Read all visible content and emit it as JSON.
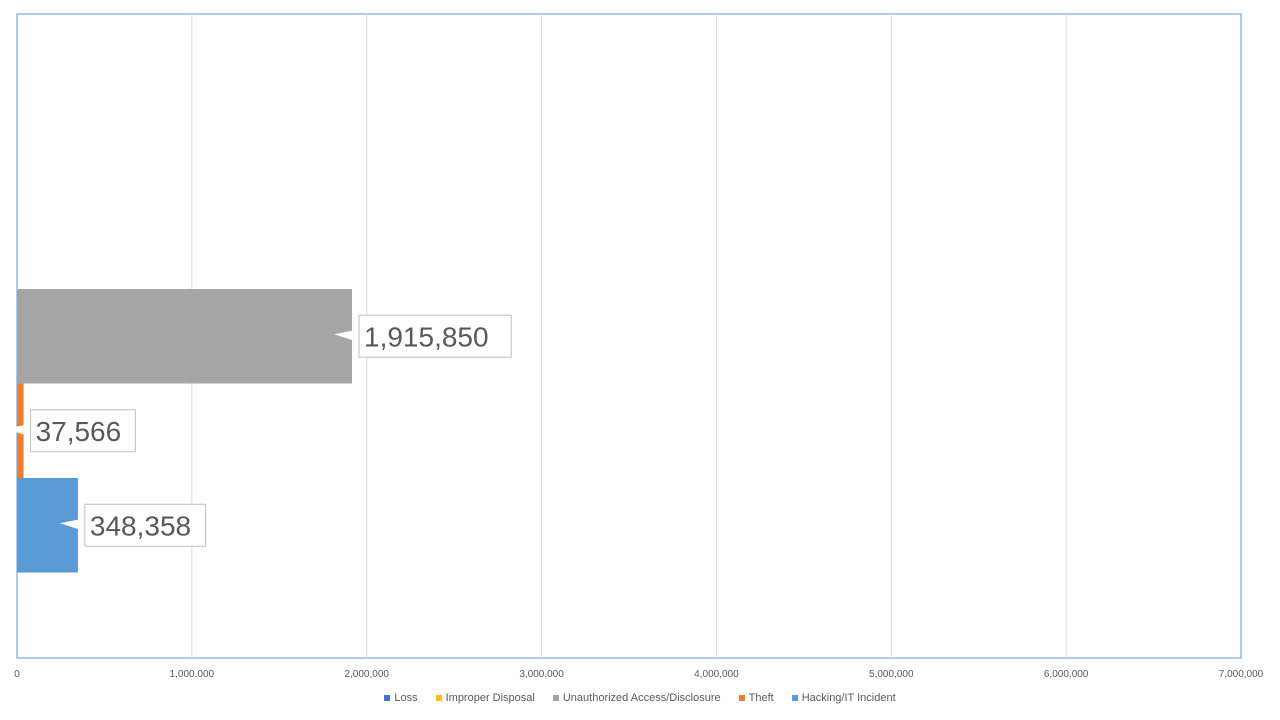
{
  "chart_data": {
    "type": "bar",
    "orientation": "horizontal",
    "title": "",
    "xlabel": "",
    "ylabel": "",
    "xlim": [
      0,
      7000000
    ],
    "x_ticks": [
      0,
      1000000,
      2000000,
      3000000,
      4000000,
      5000000,
      6000000,
      7000000
    ],
    "x_tick_labels": [
      "0",
      "1,000,000",
      "2,000,000",
      "3,000,000",
      "4,000,000",
      "5,000,000",
      "6,000,000",
      "7,000,000"
    ],
    "grid": true,
    "legend_position": "bottom",
    "series": [
      {
        "name": "Loss",
        "value": 0,
        "color": "#4472C4",
        "label": ""
      },
      {
        "name": "Improper Disposal",
        "value": 0,
        "color": "#FFC000",
        "label": ""
      },
      {
        "name": "Unauthorized Access/Disclosure",
        "value": 1915850,
        "color": "#A5A5A5",
        "label": "1,915,850"
      },
      {
        "name": "Theft",
        "value": 37566,
        "color": "#ED7D31",
        "label": "37,566"
      },
      {
        "name": "Hacking/IT Incident",
        "value": 348358,
        "color": "#5B9BD5",
        "label": "348,358"
      }
    ]
  }
}
